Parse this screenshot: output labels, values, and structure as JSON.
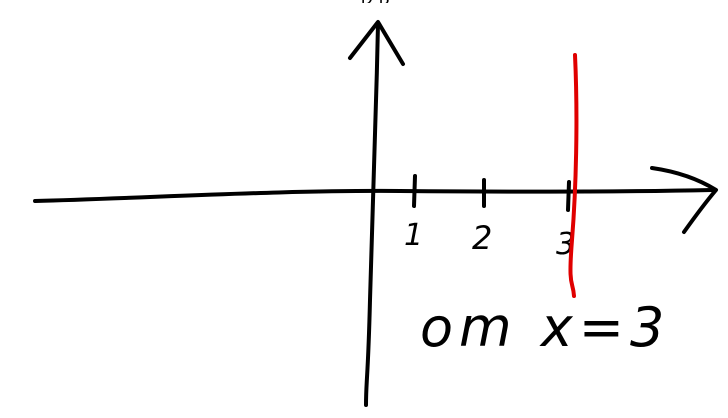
{
  "top_text": "D    B",
  "axis": {
    "tick_labels": [
      "1",
      "2",
      "3"
    ]
  },
  "equation": {
    "text": "om x=3"
  },
  "colors": {
    "ink": "#000000",
    "highlight_line": "#e00000"
  }
}
